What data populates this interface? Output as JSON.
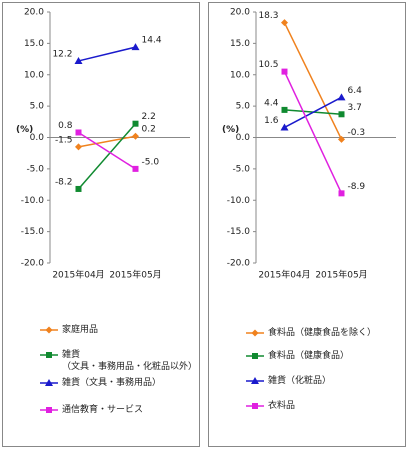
{
  "chart_data": [
    {
      "type": "line",
      "ylabel": "(%)",
      "categories": [
        "2015年04月",
        "2015年05月"
      ],
      "ylim": [
        -20,
        20
      ],
      "yticks": [
        {
          "value": -20,
          "label": "-20.0"
        },
        {
          "value": -15,
          "label": "-15.0"
        },
        {
          "value": -10,
          "label": "-10.0"
        },
        {
          "value": -5,
          "label": "-5.0"
        },
        {
          "value": 0,
          "label": "0.0"
        },
        {
          "value": 5,
          "label": "5.0"
        },
        {
          "value": 10,
          "label": "10.0"
        },
        {
          "value": 15,
          "label": "15.0"
        },
        {
          "value": 20,
          "label": "20.0"
        }
      ],
      "series": [
        {
          "name": "家庭用品",
          "color": "#f0821e",
          "marker": "diamond",
          "values": [
            -1.5,
            0.2
          ],
          "value_labels": [
            "-1.5",
            "0.2"
          ]
        },
        {
          "name": "雑貨\n（文具・事務用品・化粧品以外）",
          "color": "#108a30",
          "marker": "square",
          "values": [
            -8.2,
            2.2
          ],
          "value_labels": [
            "-8.2",
            "2.2"
          ]
        },
        {
          "name": "雑貨（文具・事務用品）",
          "color": "#1a1acc",
          "marker": "triangle",
          "values": [
            12.2,
            14.4
          ],
          "value_labels": [
            "12.2",
            "14.4"
          ]
        },
        {
          "name": "通信教育・サービス",
          "color": "#e020e0",
          "marker": "square",
          "values": [
            0.8,
            -5.0
          ],
          "value_labels": [
            "0.8",
            "-5.0"
          ]
        }
      ]
    },
    {
      "type": "line",
      "ylabel": "(%)",
      "categories": [
        "2015年04月",
        "2015年05月"
      ],
      "ylim": [
        -20,
        20
      ],
      "yticks": [
        {
          "value": -20,
          "label": "-20.0"
        },
        {
          "value": -15,
          "label": "-15.0"
        },
        {
          "value": -10,
          "label": "-10.0"
        },
        {
          "value": -5,
          "label": "-5.0"
        },
        {
          "value": 0,
          "label": "0.0"
        },
        {
          "value": 5,
          "label": "5.0"
        },
        {
          "value": 10,
          "label": "10.0"
        },
        {
          "value": 15,
          "label": "15.0"
        },
        {
          "value": 20,
          "label": "20.0"
        }
      ],
      "series": [
        {
          "name": "食料品（健康食品を除く）",
          "color": "#f0821e",
          "marker": "diamond",
          "values": [
            18.3,
            -0.3
          ],
          "value_labels": [
            "18.3",
            "-0.3"
          ]
        },
        {
          "name": "食料品（健康食品）",
          "color": "#108a30",
          "marker": "square",
          "values": [
            4.4,
            3.7
          ],
          "value_labels": [
            "4.4",
            "3.7"
          ]
        },
        {
          "name": "雑貨（化粧品）",
          "color": "#1a1acc",
          "marker": "triangle",
          "values": [
            1.6,
            6.4
          ],
          "value_labels": [
            "1.6",
            "6.4"
          ]
        },
        {
          "name": "衣料品",
          "color": "#e020e0",
          "marker": "square",
          "values": [
            10.5,
            -8.9
          ],
          "value_labels": [
            "10.5",
            "-8.9"
          ]
        }
      ]
    }
  ]
}
